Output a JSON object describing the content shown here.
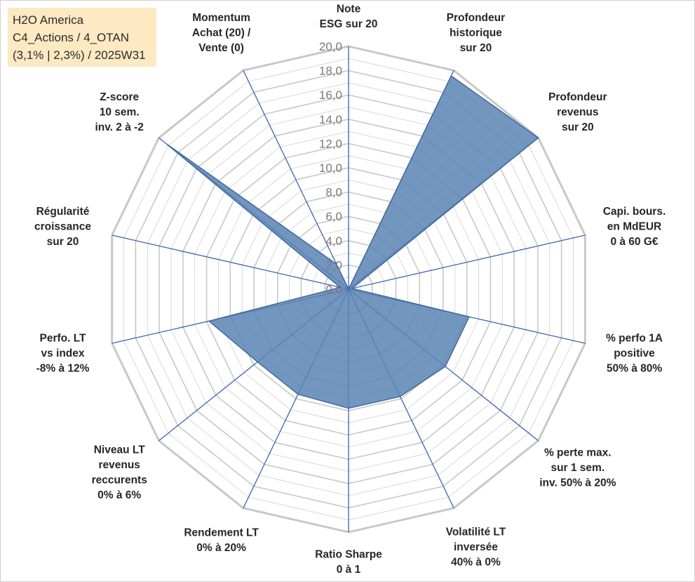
{
  "info_box": {
    "line1": "H2O America",
    "line2": "C4_Actions / 4_OTAN",
    "line3": "(3,1% | 2,3%) / 2025W31"
  },
  "colors": {
    "fill": "#5b84b4",
    "stroke": "#3f6aa0",
    "grid": "#c8c8c8",
    "spoke": "#3f63b0",
    "info_bg": "#fde9c2"
  },
  "chart_data": {
    "type": "radar",
    "rmin": 0,
    "rmax": 20,
    "tick_step": 2,
    "tick_labels": [
      "0,0",
      "2,0",
      "4,0",
      "6,0",
      "8,0",
      "10,0",
      "12,0",
      "14,0",
      "16,0",
      "18,0",
      "20,0"
    ],
    "grid": true,
    "legend": "none",
    "axes": [
      {
        "label": [
          "Note",
          "ESG sur 20"
        ],
        "value": 0
      },
      {
        "label": [
          "Profondeur",
          "historique",
          "sur 20"
        ],
        "value": 19.5
      },
      {
        "label": [
          "Profondeur",
          "revenus",
          "sur 20"
        ],
        "value": 20
      },
      {
        "label": [
          "Capi. bours.",
          "en MdEUR",
          "0 à 60 G€"
        ],
        "value": 0.3
      },
      {
        "label": [
          "% perfo 1A",
          "positive",
          "50% à 80%"
        ],
        "value": 10.2
      },
      {
        "label": [
          "% perte max.",
          "sur 1 sem.",
          "inv. 50% à 20%"
        ],
        "value": 10.2
      },
      {
        "label": [
          "Volatilité LT",
          "inversée",
          "40% à 0%"
        ],
        "value": 9.8
      },
      {
        "label": [
          "Ratio Sharpe",
          "0 à 1"
        ],
        "value": 9.8
      },
      {
        "label": [
          "Rendement LT",
          "0% à 20%"
        ],
        "value": 9.6
      },
      {
        "label": [
          "Niveau LT",
          "revenus",
          "reccurents",
          "0% à 6%"
        ],
        "value": 9.6
      },
      {
        "label": [
          "Perfo. LT",
          "vs index",
          "-8% à 12%"
        ],
        "value": 11.8
      },
      {
        "label": [
          "Régularité",
          "croissance",
          "sur 20"
        ],
        "value": 0.7
      },
      {
        "label": [
          "Z-score",
          "10 sem.",
          "inv. 2 à -2"
        ],
        "value": 19.2
      },
      {
        "label": [
          "Momentum",
          "Achat (20) /",
          "Vente (0)"
        ],
        "value": 2.3
      }
    ]
  }
}
